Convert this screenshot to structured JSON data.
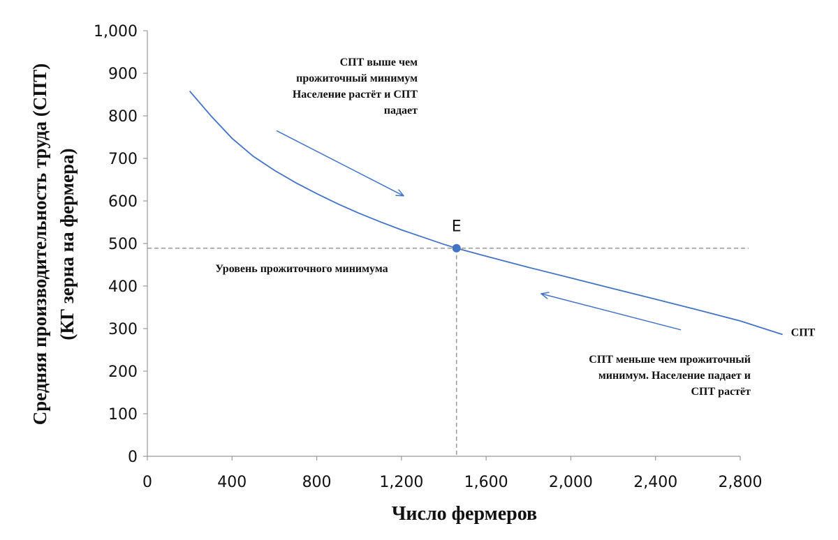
{
  "chart_data": {
    "type": "line",
    "title": "",
    "xlabel": "Число фермеров",
    "ylabel_lines": [
      "Средняя производительность труда (СПТ)",
      "(КГ зерна на фермера)"
    ],
    "xlim": [
      0,
      2800
    ],
    "ylim": [
      0,
      1000
    ],
    "x_ticks": [
      0,
      400,
      800,
      1200,
      1600,
      2000,
      2400,
      2800
    ],
    "x_tick_labels": [
      "0",
      "400",
      "800",
      "1,200",
      "1,600",
      "2,000",
      "2,400",
      "2,800"
    ],
    "y_ticks": [
      0,
      100,
      200,
      300,
      400,
      500,
      600,
      700,
      800,
      900,
      1000
    ],
    "y_tick_labels": [
      "0",
      "100",
      "200",
      "300",
      "400",
      "500",
      "600",
      "700",
      "800",
      "900",
      "1,000"
    ],
    "series": [
      {
        "name": "СПТ",
        "color": "#4472c4",
        "x": [
          200,
          300,
          400,
          500,
          600,
          700,
          800,
          900,
          1000,
          1100,
          1200,
          1300,
          1400,
          1460,
          1600,
          1800,
          2000,
          2200,
          2400,
          2600,
          2800,
          3000
        ],
        "y": [
          858,
          800,
          747,
          705,
          672,
          643,
          617,
          593,
          571,
          551,
          532,
          515,
          498,
          489,
          470,
          444,
          419,
          394,
          369,
          344,
          318,
          286
        ]
      }
    ],
    "equilibrium": {
      "label": "E",
      "x": 1460,
      "y": 489,
      "color": "#4472c4"
    },
    "subsistence_label": "Уровень прожиточного минимума",
    "annotations": {
      "above": [
        "СПТ выше чем",
        "прожиточный минимум",
        "Население растёт и СПТ",
        "падает"
      ],
      "below": [
        "СПТ меньше чем прожиточный",
        "минимум. Население падает и",
        "СПТ растёт"
      ]
    },
    "arrows": [
      {
        "from": [
          610,
          765
        ],
        "to": [
          1210,
          612
        ]
      },
      {
        "from": [
          2520,
          297
        ],
        "to": [
          1860,
          382
        ]
      }
    ],
    "guide_color": "#999999"
  }
}
